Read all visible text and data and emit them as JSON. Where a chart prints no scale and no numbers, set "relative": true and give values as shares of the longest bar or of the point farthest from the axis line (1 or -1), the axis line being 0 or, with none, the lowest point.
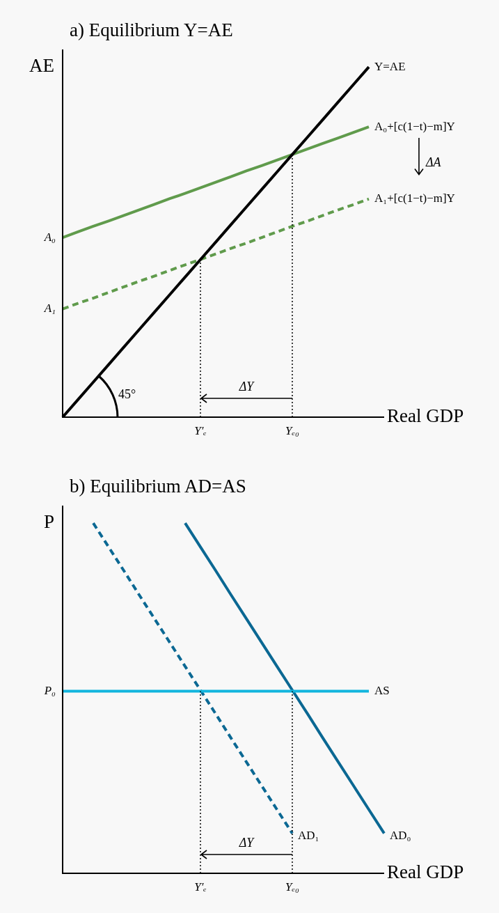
{
  "chart_data": [
    {
      "type": "line",
      "title": "a) Equilibrium Y=AE",
      "xlabel": "Real GDP",
      "ylabel": "AE",
      "relative": true,
      "legend": false,
      "tick_labels": "x",
      "categories": [
        null,
        null,
        null,
        null,
        null,
        null,
        null,
        null,
        null,
        "Y′ₑ",
        null,
        null,
        null,
        null,
        null,
        "Yₑ₀",
        null,
        null,
        null,
        null,
        null,
        null
      ],
      "series": [
        {
          "name": "Y=AE",
          "color": "#000000",
          "values": [
            0,
            0.05,
            0.1,
            0.15,
            0.2,
            0.25,
            0.3,
            0.35,
            0.4,
            0.45,
            0.5,
            0.55,
            0.6,
            0.65,
            0.7,
            0.75,
            0.8,
            0.85,
            0.9,
            0.95,
            1.0,
            null
          ]
        },
        {
          "name": "A₀+[c(1−t)−m]Y",
          "color": "#609b4c",
          "values": [
            0.513,
            0.529,
            0.545,
            0.56,
            0.576,
            0.592,
            0.608,
            0.624,
            0.639,
            0.655,
            0.671,
            0.687,
            0.703,
            0.718,
            0.734,
            0.75,
            0.766,
            0.782,
            0.797,
            0.813,
            0.829,
            null
          ]
        },
        {
          "name": "A₁+[c(1−t)−m]Y",
          "color": "#609b4c",
          "line_style": "dashed",
          "values": [
            0.309,
            0.325,
            0.34,
            0.356,
            0.372,
            0.388,
            0.403,
            0.419,
            0.435,
            0.45,
            0.466,
            0.482,
            0.497,
            0.513,
            0.529,
            0.545,
            0.56,
            0.576,
            0.592,
            0.607,
            0.623,
            null
          ]
        }
      ],
      "ref_lines": [
        {
          "axis": "x",
          "value": "Y′ₑ",
          "line_style": "dotted",
          "color": "#000000"
        },
        {
          "axis": "x",
          "value": "Yₑ₀",
          "line_style": "dotted",
          "color": "#000000"
        }
      ],
      "annotations": [
        "A₀",
        "A₁",
        "ΔY",
        "ΔA",
        "45°"
      ]
    },
    {
      "type": "line",
      "title": "b) Equilibrium AD=AS",
      "xlabel": "Real GDP",
      "ylabel": "P",
      "relative": true,
      "legend": false,
      "tick_labels": "x",
      "categories": [
        null,
        null,
        null,
        null,
        null,
        null,
        null,
        null,
        null,
        "Y′ₑ",
        null,
        null,
        null,
        null,
        null,
        "Yₑ₀",
        null,
        null,
        null,
        null,
        null,
        null
      ],
      "series": [
        {
          "name": "AS",
          "color": "#12b5de",
          "values": [
            0.52,
            0.52,
            0.52,
            0.52,
            0.52,
            0.52,
            0.52,
            0.52,
            0.52,
            0.52,
            0.52,
            0.52,
            0.52,
            0.52,
            0.52,
            0.52,
            0.52,
            0.52,
            0.52,
            0.52,
            0.52,
            null
          ]
        },
        {
          "name": "AD₀",
          "color": "#0b6893",
          "values": [
            null,
            null,
            null,
            null,
            null,
            null,
            null,
            null,
            1.0,
            0.932,
            0.864,
            0.795,
            0.727,
            0.659,
            0.591,
            0.523,
            0.455,
            0.386,
            0.318,
            0.25,
            0.182,
            0.114
          ]
        },
        {
          "name": "AD₁",
          "color": "#0b6893",
          "line_style": "dashed",
          "values": [
            null,
            null,
            1.0,
            0.932,
            0.864,
            0.795,
            0.727,
            0.659,
            0.591,
            0.523,
            0.455,
            0.386,
            0.318,
            0.25,
            0.182,
            0.114,
            null,
            null,
            null,
            null,
            null,
            null
          ]
        }
      ],
      "ref_lines": [
        {
          "axis": "x",
          "value": "Y′ₑ",
          "line_style": "dotted",
          "color": "#000000"
        },
        {
          "axis": "x",
          "value": "Yₑ₀",
          "line_style": "dotted",
          "color": "#000000"
        }
      ],
      "annotations": [
        "P₀",
        "ΔY"
      ]
    }
  ]
}
